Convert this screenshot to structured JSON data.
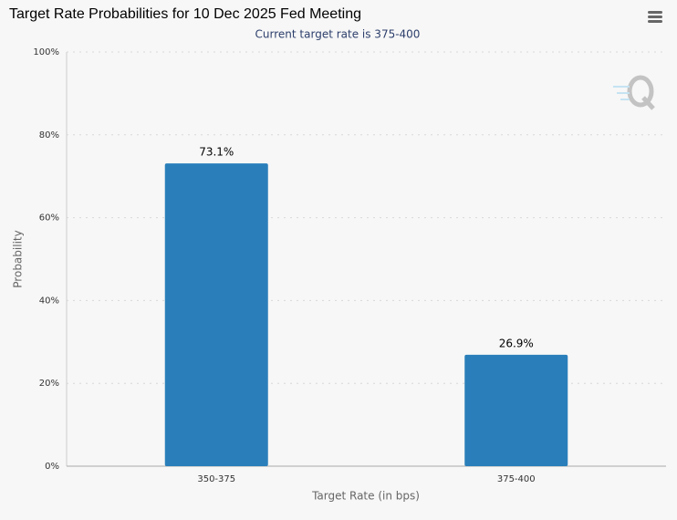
{
  "chart_data": {
    "type": "bar",
    "title": "Target Rate Probabilities for 10 Dec 2025 Fed Meeting",
    "subtitle": "Current target rate is 375-400",
    "x_label": "Target Rate (in bps)",
    "y_label": "Probability",
    "categories": [
      "350-375",
      "375-400"
    ],
    "values": [
      73.1,
      26.9
    ],
    "value_labels": [
      "73.1%",
      "26.9%"
    ],
    "color": "#2a7fba",
    "ylim": [
      0,
      100
    ],
    "yticks": [
      {
        "value": 0,
        "label": "0%"
      },
      {
        "value": 20,
        "label": "20%"
      },
      {
        "value": 40,
        "label": "40%"
      },
      {
        "value": 60,
        "label": "60%"
      },
      {
        "value": 80,
        "label": "80%"
      },
      {
        "value": 100,
        "label": "100%"
      }
    ],
    "grid": true
  }
}
